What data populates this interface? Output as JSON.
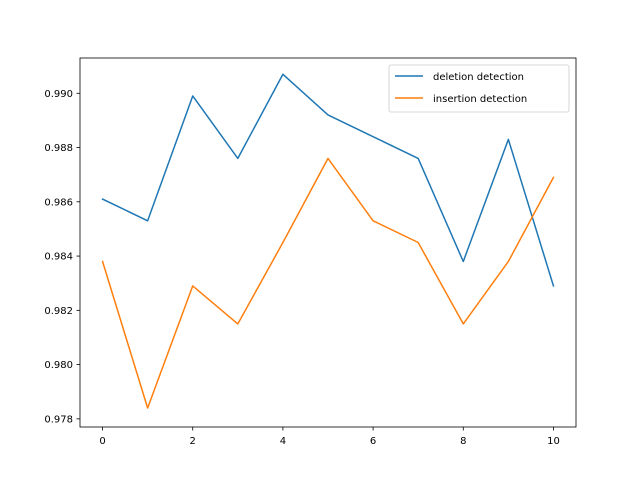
{
  "chart_data": {
    "type": "line",
    "title": "",
    "xlabel": "",
    "ylabel": "",
    "x": [
      0,
      1,
      2,
      3,
      4,
      5,
      6,
      7,
      8,
      9,
      10
    ],
    "xlim": [
      -0.5,
      10.5
    ],
    "ylim": [
      0.9777,
      0.9913
    ],
    "xticks": [
      0,
      2,
      4,
      6,
      8,
      10
    ],
    "xtick_labels": [
      "0",
      "2",
      "4",
      "6",
      "8",
      "10"
    ],
    "yticks": [
      0.978,
      0.98,
      0.982,
      0.984,
      0.986,
      0.988,
      0.99
    ],
    "ytick_labels": [
      "0.978",
      "0.980",
      "0.982",
      "0.984",
      "0.986",
      "0.988",
      "0.990"
    ],
    "grid": false,
    "legend_position": "top-right",
    "series": [
      {
        "name": "deletion detection",
        "color": "#1f77b4",
        "values": [
          0.9861,
          0.9853,
          0.9899,
          0.9876,
          0.9907,
          0.9892,
          0.9884,
          0.9876,
          0.9838,
          0.9883,
          0.9829
        ]
      },
      {
        "name": "insertion detection",
        "color": "#ff7f0e",
        "values": [
          0.9838,
          0.9784,
          0.9829,
          0.9815,
          0.9845,
          0.9876,
          0.9853,
          0.9845,
          0.9815,
          0.9838,
          0.9869
        ]
      }
    ]
  }
}
